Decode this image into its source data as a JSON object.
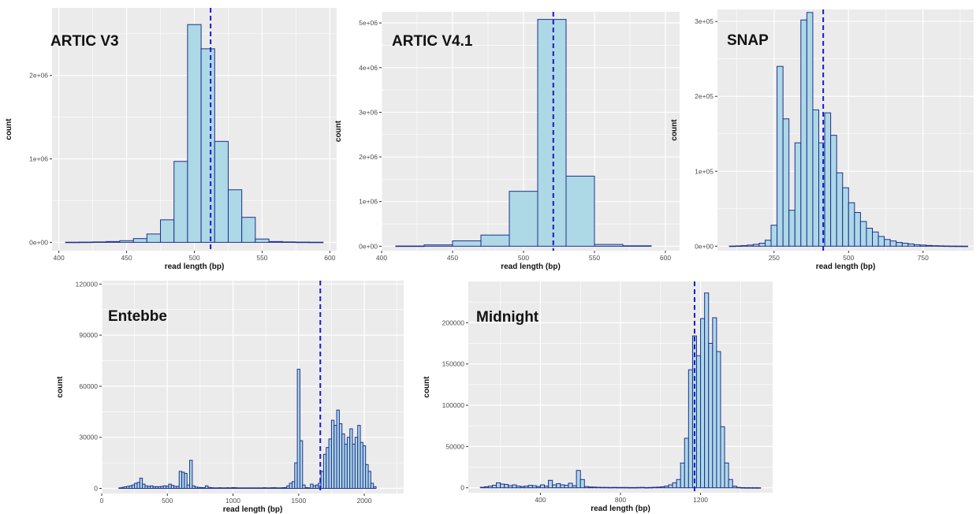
{
  "figure": {
    "background": "#ffffff"
  },
  "style": {
    "panel_bg": "#ebebeb",
    "grid_major": "#ffffff",
    "bar_fill": "#add8e6",
    "bar_stroke": "#1f2f8f",
    "median_line": "#1a1acc"
  },
  "chart_data": [
    {
      "type": "bar",
      "title": "ARTIC V3",
      "xlabel": "read length (bp)",
      "ylabel": "count",
      "xlim": [
        395,
        605
      ],
      "ylim": [
        -100000,
        2810000
      ],
      "xticks": [
        400,
        450,
        500,
        550,
        600
      ],
      "yticks": [
        0,
        1000000,
        2000000
      ],
      "ytick_labels": [
        "0e+00",
        "1e+06",
        "2e+06"
      ],
      "bin_width": 10,
      "bin_centers": [
        410,
        420,
        430,
        440,
        450,
        460,
        470,
        480,
        490,
        500,
        510,
        520,
        530,
        540,
        550,
        560,
        570,
        580,
        590
      ],
      "values": [
        2000,
        3000,
        5000,
        10000,
        20000,
        45000,
        100000,
        270000,
        970000,
        2610000,
        2320000,
        1210000,
        630000,
        300000,
        40000,
        10000,
        5000,
        3000,
        2000
      ],
      "median": 512,
      "grid": true
    },
    {
      "type": "bar",
      "title": "ARTIC V4.1",
      "xlabel": "read length (bp)",
      "ylabel": "count",
      "xlim": [
        400,
        610
      ],
      "ylim": [
        -100000,
        5250000
      ],
      "xticks": [
        400,
        450,
        500,
        550,
        600
      ],
      "yticks": [
        0,
        1000000,
        2000000,
        3000000,
        4000000,
        5000000
      ],
      "ytick_labels": [
        "0e+00",
        "1e+06",
        "2e+06",
        "3e+06",
        "4e+06",
        "5e+06"
      ],
      "bin_width": 20,
      "bin_centers": [
        420,
        440,
        460,
        480,
        500,
        520,
        540,
        560,
        580
      ],
      "values": [
        5000,
        30000,
        120000,
        250000,
        1230000,
        5080000,
        1570000,
        40000,
        10000
      ],
      "median": 521,
      "grid": true
    },
    {
      "type": "bar",
      "title": "SNAP",
      "xlabel": "read length (bp)",
      "ylabel": "count",
      "xlim": [
        60,
        920
      ],
      "ylim": [
        -6000,
        316000
      ],
      "xticks": [
        250,
        500,
        750
      ],
      "yticks": [
        0,
        100000,
        200000,
        300000
      ],
      "ytick_labels": [
        "0e+00",
        "1e+05",
        "2e+05",
        "3e+05"
      ],
      "bin_width": 20,
      "bin_centers": [
        110,
        130,
        150,
        170,
        190,
        210,
        230,
        250,
        270,
        290,
        310,
        330,
        350,
        370,
        390,
        410,
        430,
        450,
        470,
        490,
        510,
        530,
        550,
        570,
        590,
        610,
        630,
        650,
        670,
        690,
        710,
        730,
        750,
        770,
        790,
        810,
        830,
        850,
        870,
        890
      ],
      "values": [
        200,
        400,
        800,
        1500,
        2500,
        4000,
        8000,
        28000,
        240000,
        170000,
        48000,
        138000,
        302000,
        312000,
        182000,
        138000,
        178000,
        148000,
        98000,
        78000,
        58000,
        45000,
        33000,
        24000,
        19000,
        13000,
        9000,
        7000,
        5000,
        4000,
        3000,
        2000,
        1500,
        1000,
        700,
        500,
        300,
        200,
        150,
        100
      ],
      "median": 415,
      "grid": true
    },
    {
      "type": "bar",
      "title": "Entebbe",
      "xlabel": "read length (bp)",
      "ylabel": "count",
      "xlim": [
        0,
        2300
      ],
      "ylim": [
        -3000,
        122000
      ],
      "xticks": [
        0,
        500,
        1000,
        1500,
        2000
      ],
      "yticks": [
        0,
        30000,
        60000,
        90000,
        120000
      ],
      "ytick_labels": [
        "0",
        "30000",
        "60000",
        "90000",
        "120000"
      ],
      "bin_width": 20,
      "bin_centers": [
        140,
        160,
        180,
        200,
        220,
        240,
        260,
        280,
        300,
        320,
        340,
        360,
        380,
        400,
        420,
        440,
        460,
        480,
        500,
        520,
        540,
        560,
        580,
        600,
        620,
        640,
        660,
        680,
        700,
        720,
        740,
        760,
        780,
        800,
        820,
        840,
        860,
        880,
        900,
        920,
        940,
        960,
        980,
        1000,
        1020,
        1040,
        1060,
        1080,
        1100,
        1120,
        1140,
        1160,
        1180,
        1200,
        1220,
        1240,
        1260,
        1280,
        1300,
        1320,
        1340,
        1360,
        1380,
        1400,
        1420,
        1440,
        1460,
        1480,
        1500,
        1520,
        1540,
        1560,
        1580,
        1600,
        1620,
        1640,
        1660,
        1680,
        1700,
        1720,
        1740,
        1760,
        1780,
        1800,
        1820,
        1840,
        1860,
        1880,
        1900,
        1920,
        1940,
        1960,
        1980,
        2000,
        2020,
        2040,
        2060,
        2080,
        2100,
        2120,
        2140,
        2160,
        2180
      ],
      "values": [
        300,
        600,
        900,
        1200,
        1500,
        2000,
        3000,
        3500,
        6000,
        2500,
        1500,
        1200,
        1500,
        1000,
        1000,
        1000,
        1200,
        1500,
        1300,
        2500,
        1800,
        1200,
        1200,
        10000,
        9500,
        8800,
        2000,
        16500,
        1500,
        800,
        600,
        500,
        400,
        1500,
        600,
        400,
        300,
        300,
        400,
        300,
        300,
        400,
        300,
        500,
        400,
        300,
        300,
        300,
        300,
        300,
        300,
        300,
        300,
        300,
        300,
        400,
        300,
        300,
        400,
        400,
        300,
        300,
        400,
        500,
        1500,
        3000,
        4000,
        15000,
        70000,
        28000,
        2000,
        500,
        300,
        2500,
        1500,
        2000,
        3000,
        10000,
        20000,
        24000,
        29000,
        40000,
        37000,
        46000,
        38000,
        32000,
        26000,
        30000,
        35000,
        26000,
        30000,
        37000,
        27000,
        25000,
        14000,
        10000,
        3000,
        1000
      ],
      "median": 1665,
      "grid": true
    },
    {
      "type": "bar",
      "title": "Midnight",
      "xlabel": "read length (bp)",
      "ylabel": "count",
      "xlim": [
        40,
        1560
      ],
      "ylim": [
        -6000,
        250000
      ],
      "xticks": [
        400,
        800,
        1200
      ],
      "yticks": [
        0,
        50000,
        100000,
        150000,
        200000
      ],
      "ytick_labels": [
        "0",
        "50000",
        "100000",
        "150000",
        "200000"
      ],
      "bin_width": 20,
      "bin_centers": [
        110,
        130,
        150,
        170,
        190,
        210,
        230,
        250,
        270,
        290,
        310,
        330,
        350,
        370,
        390,
        410,
        430,
        450,
        470,
        490,
        510,
        530,
        550,
        570,
        590,
        610,
        630,
        650,
        670,
        690,
        710,
        730,
        750,
        770,
        790,
        810,
        830,
        850,
        870,
        890,
        910,
        930,
        950,
        970,
        990,
        1010,
        1030,
        1050,
        1070,
        1090,
        1110,
        1130,
        1150,
        1170,
        1190,
        1210,
        1230,
        1250,
        1270,
        1290,
        1310,
        1330,
        1350,
        1370,
        1390,
        1410,
        1430,
        1450,
        1470,
        1490
      ],
      "values": [
        600,
        1200,
        2000,
        3000,
        6000,
        4500,
        4000,
        2500,
        3500,
        2000,
        1500,
        2000,
        3000,
        2500,
        1500,
        3500,
        2000,
        9000,
        3500,
        5000,
        3500,
        3000,
        5500,
        2500,
        21000,
        10000,
        1500,
        1000,
        800,
        600,
        500,
        500,
        400,
        500,
        400,
        400,
        400,
        300,
        300,
        400,
        500,
        300,
        400,
        600,
        800,
        1200,
        2000,
        3500,
        6000,
        10000,
        30000,
        60000,
        143000,
        184000,
        160000,
        205000,
        236000,
        175000,
        206000,
        165000,
        74000,
        30000,
        10000,
        2000,
        500,
        200,
        100,
        100,
        50,
        50
      ],
      "median": 1170,
      "grid": true
    }
  ]
}
